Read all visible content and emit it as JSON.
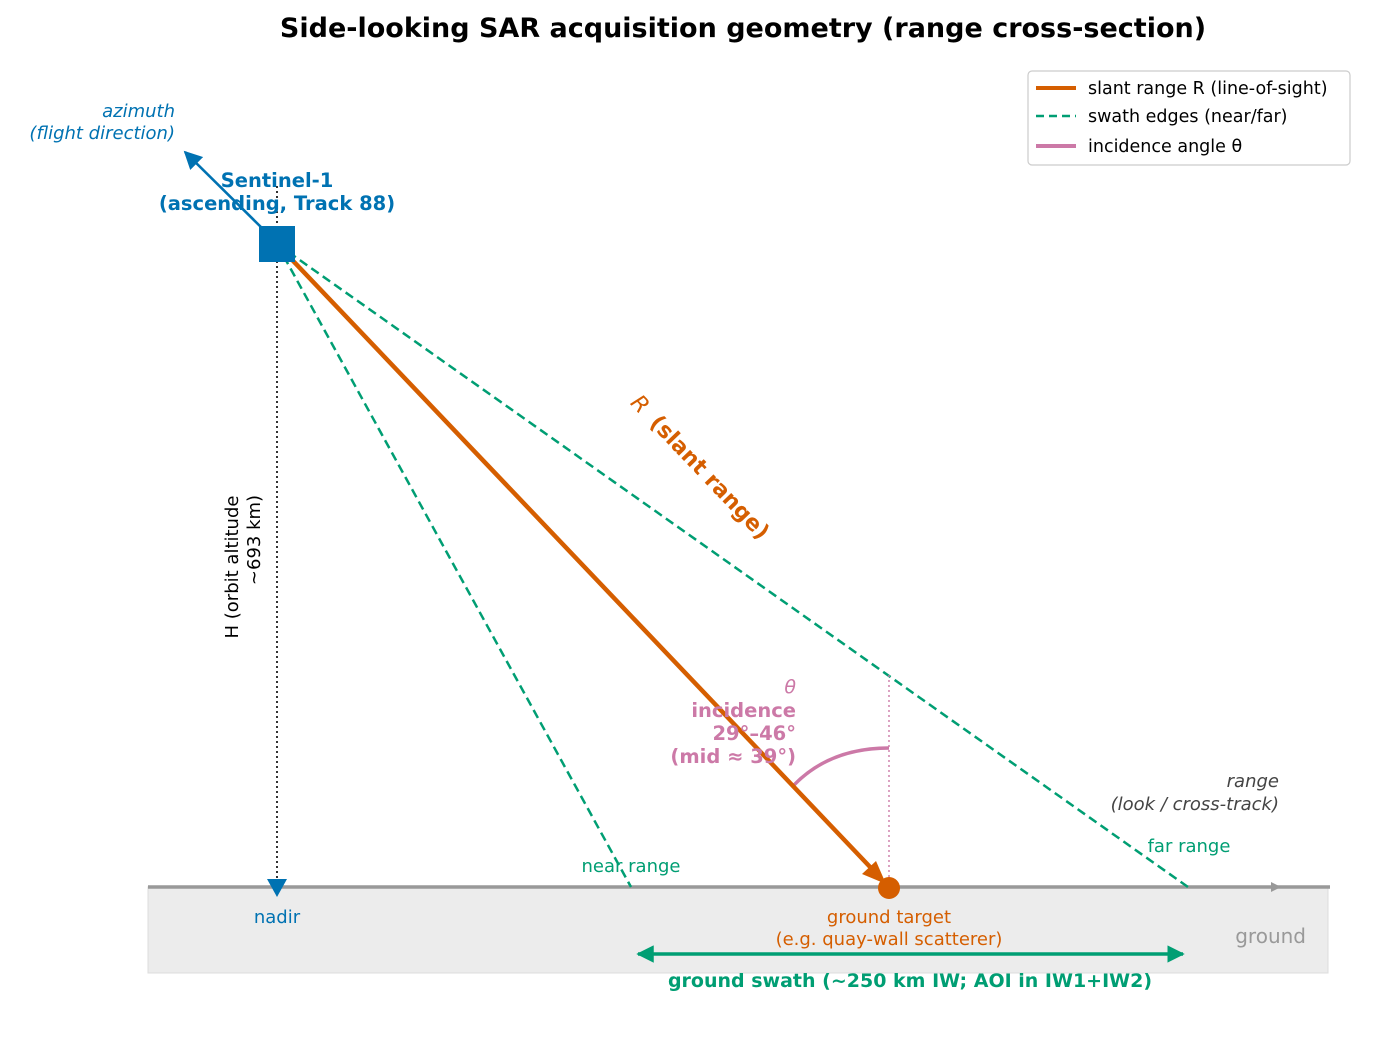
{
  "title": "Side-looking SAR acquisition geometry (range cross-section)",
  "colors": {
    "satellite": "#0072b2",
    "slant": "#d55e00",
    "swath": "#009e73",
    "incidence": "#cc79a7",
    "ground_line": "#999999",
    "ground_fill": "#ececec",
    "range_text": "#444444",
    "altitude_text": "#000000"
  },
  "satellite": {
    "name": "Sentinel-1",
    "pass": "(ascending, Track 88)"
  },
  "azimuth": {
    "line1": "azimuth",
    "line2": "(flight direction)"
  },
  "altitude": {
    "line1": "H (orbit altitude",
    "line2": "~693 km)"
  },
  "nadir_label": "nadir",
  "slant_label": {
    "symbol": "R",
    "text": "(slant range)"
  },
  "incidence": {
    "symbol": "θ",
    "line1": "incidence",
    "line2": "29°–46°",
    "line3": "(mid ≈ 39°)"
  },
  "range_axis": {
    "line1": "range",
    "line2": "(look / cross-track)"
  },
  "near_range_label": "near range",
  "far_range_label": "far range",
  "target": {
    "line1": "ground target",
    "line2": "(e.g. quay-wall scatterer)"
  },
  "ground_label": "ground",
  "swath_label": "ground swath  (~250 km IW; AOI in IW1+IW2)",
  "legend": {
    "items": [
      {
        "label": "slant range R (line-of-sight)",
        "style": "solid",
        "color": "#d55e00"
      },
      {
        "label": "swath edges (near/far)",
        "style": "dashed",
        "color": "#009e73"
      },
      {
        "label": "incidence angle θ",
        "style": "solid",
        "color": "#cc79a7"
      }
    ]
  }
}
